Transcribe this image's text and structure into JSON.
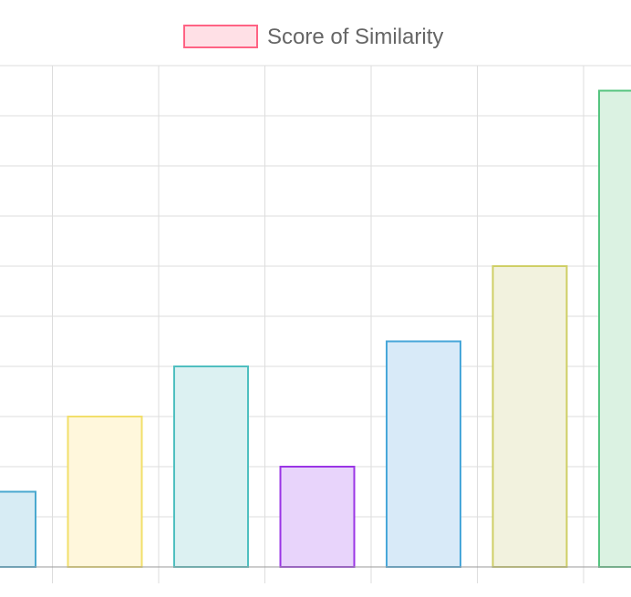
{
  "chart_data": {
    "type": "bar",
    "series": [
      {
        "name": "Score of Similarity",
        "legend_fill": "#ffe0e6",
        "legend_stroke": "#ff6384",
        "values": [
          1.5,
          3,
          4,
          2,
          4.5,
          6,
          9.5
        ]
      }
    ],
    "bar_colors": [
      {
        "fill": "#d7ecf4",
        "stroke": "#4aa9cf"
      },
      {
        "fill": "#fff7dc",
        "stroke": "#f2df6a"
      },
      {
        "fill": "#dcf1f2",
        "stroke": "#4fbfc0"
      },
      {
        "fill": "#e8d4fb",
        "stroke": "#9a35e5"
      },
      {
        "fill": "#d8eaf8",
        "stroke": "#48a7d9"
      },
      {
        "fill": "#f2f2de",
        "stroke": "#cfcf66"
      },
      {
        "fill": "#dbf2e2",
        "stroke": "#55c47f"
      }
    ],
    "ylim": [
      0,
      10
    ],
    "grid": true,
    "legend_position": "top"
  }
}
